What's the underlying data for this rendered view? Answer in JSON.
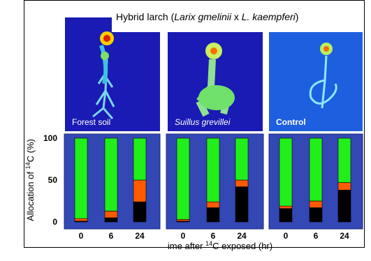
{
  "title": {
    "prefix": "Hybrid larch (",
    "species1": "Larix gmelinii",
    "x": " x ",
    "species2": "L. kaempferi",
    "suffix": ")"
  },
  "photos": [
    {
      "label": "Forest soil"
    },
    {
      "label": "Suillus grevillei"
    },
    {
      "label": "Control"
    }
  ],
  "colors": {
    "panel_bg": "#3347b5",
    "green": "#22ee1a",
    "orange": "#ff5a00",
    "black": "#000000",
    "photo_bg": "#1a1ab4",
    "photo_bg_control": "#1e5fe0"
  },
  "chart_data": {
    "type": "bar",
    "stacked": true,
    "ylabel": "Allocation of 14C (%)",
    "ylabel_parts": {
      "pre": "Allocation of ",
      "sup": "14",
      "post": "C (%)"
    },
    "xlabel_parts": {
      "pre": "ime after ",
      "sup": "14",
      "post": "C exposed (hr)"
    },
    "ylim": [
      0,
      100
    ],
    "yticks": [
      0,
      50,
      100
    ],
    "categories": [
      "0",
      "6",
      "24"
    ],
    "panels": [
      {
        "label": "Forest soil",
        "series": [
          {
            "name": "black",
            "values": [
              1,
              5,
              24
            ]
          },
          {
            "name": "orange",
            "values": [
              3,
              8,
              26
            ]
          },
          {
            "name": "green",
            "values": [
              96,
              87,
              50
            ]
          }
        ]
      },
      {
        "label": "Suillus grevillei",
        "series": [
          {
            "name": "black",
            "values": [
              1,
              17,
              42
            ]
          },
          {
            "name": "orange",
            "values": [
              2,
              7,
              8
            ]
          },
          {
            "name": "green",
            "values": [
              97,
              76,
              50
            ]
          }
        ]
      },
      {
        "label": "Control",
        "series": [
          {
            "name": "black",
            "values": [
              16,
              17,
              38
            ]
          },
          {
            "name": "orange",
            "values": [
              3,
              8,
              9
            ]
          },
          {
            "name": "green",
            "values": [
              81,
              75,
              53
            ]
          }
        ]
      }
    ]
  }
}
